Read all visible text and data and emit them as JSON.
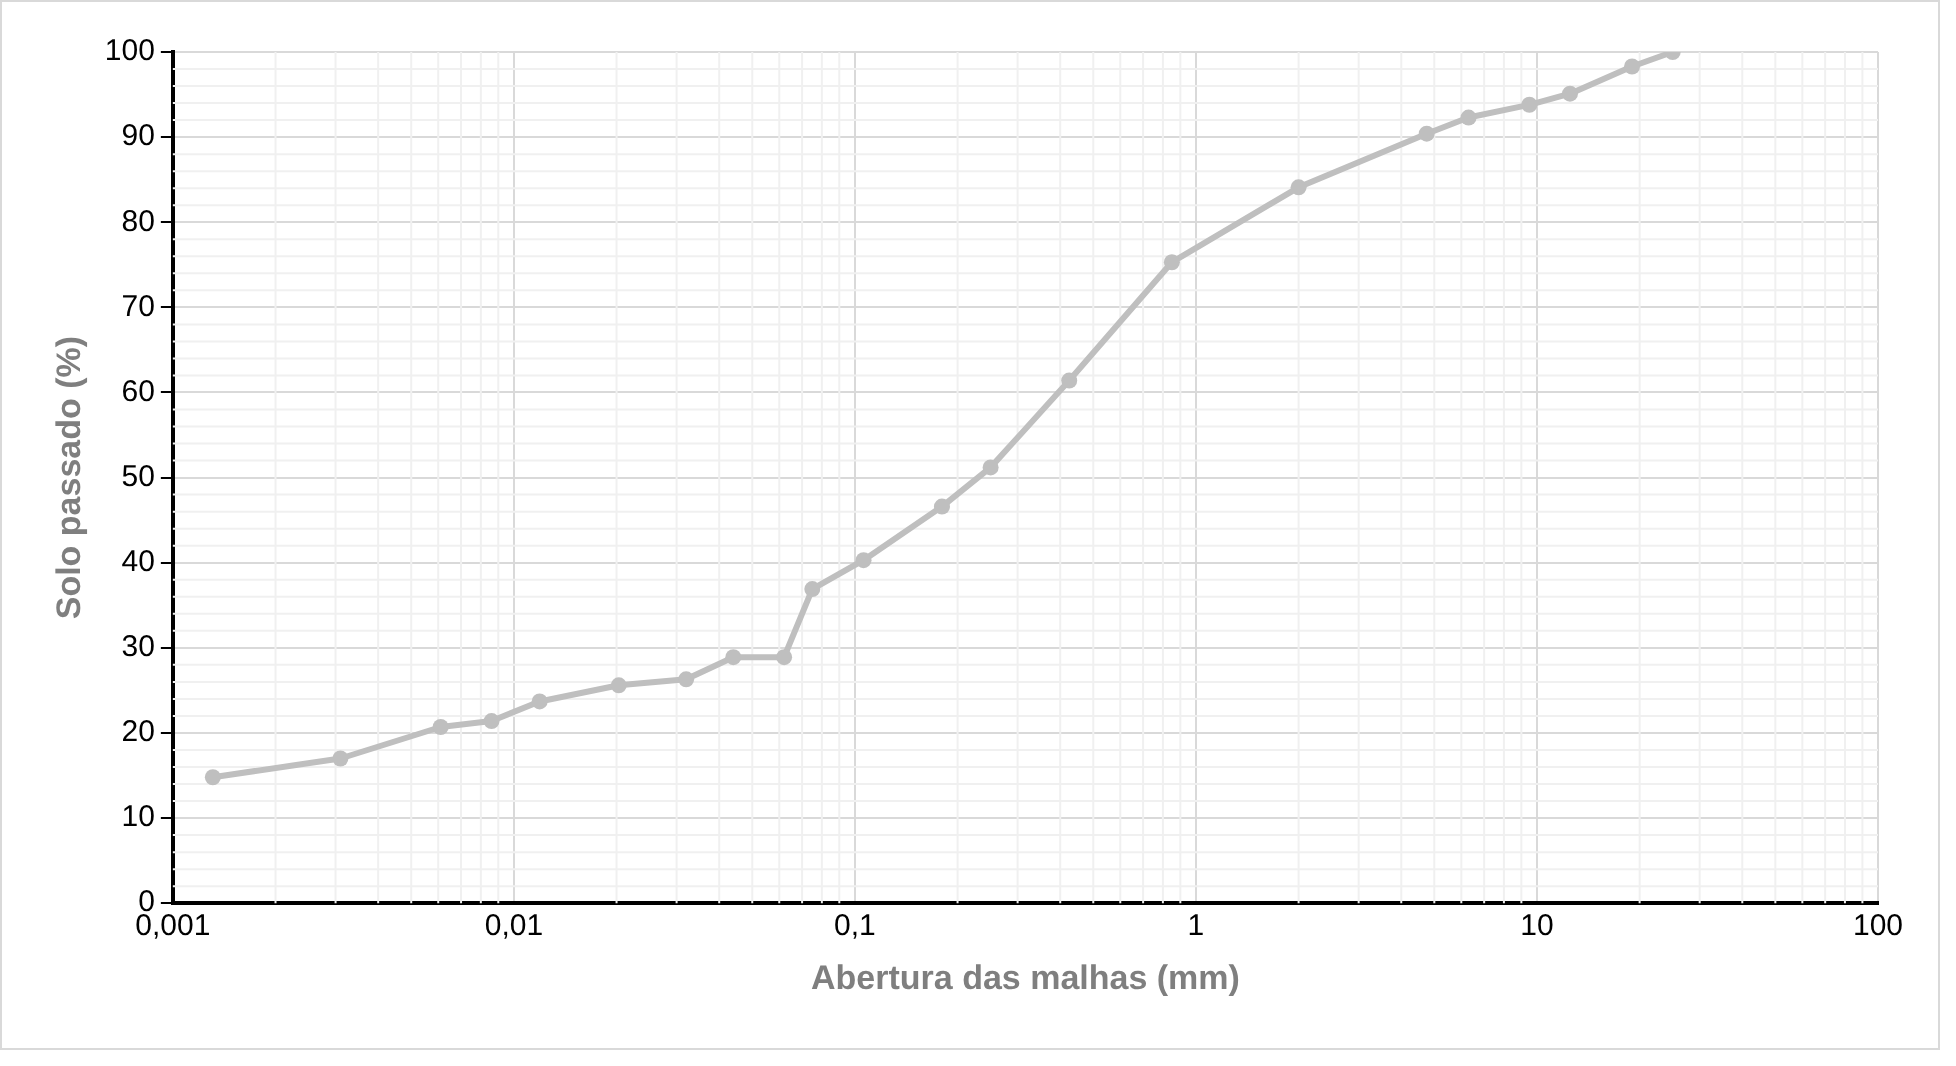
{
  "chart_data": {
    "type": "line",
    "xlabel": "Abertura das malhas (mm)",
    "ylabel": "Solo passado (%)",
    "x": [
      0.00131,
      0.0031,
      0.0061,
      0.0086,
      0.0119,
      0.0203,
      0.032,
      0.044,
      0.062,
      0.075,
      0.106,
      0.18,
      0.25,
      0.425,
      0.85,
      2.0,
      4.75,
      6.3,
      9.5,
      12.5,
      19,
      25
    ],
    "series": [
      {
        "color": "#bfbfbf",
        "values": [
          14.8,
          17,
          20.7,
          21.4,
          23.7,
          25.6,
          26.3,
          28.9,
          28.9,
          36.9,
          40.3,
          46.6,
          51.2,
          61.4,
          75.3,
          84.1,
          90.4,
          92.3,
          93.8,
          95.1,
          98.3,
          100
        ]
      }
    ],
    "log": "x",
    "xlim": [
      0.001,
      100
    ],
    "xticks": [
      {
        "value": 0.001,
        "label": "0,001"
      },
      {
        "value": 0.01,
        "label": "0,01"
      },
      {
        "value": 0.1,
        "label": "0,1"
      },
      {
        "value": 1,
        "label": "1"
      },
      {
        "value": 10,
        "label": "10"
      },
      {
        "value": 100,
        "label": "100"
      }
    ],
    "ylim": [
      0,
      100
    ],
    "yticks": [
      0,
      10,
      20,
      30,
      40,
      50,
      60,
      70,
      80,
      90,
      100
    ],
    "grid": true,
    "legend": false,
    "marker": "circle",
    "line_style": "solid"
  }
}
